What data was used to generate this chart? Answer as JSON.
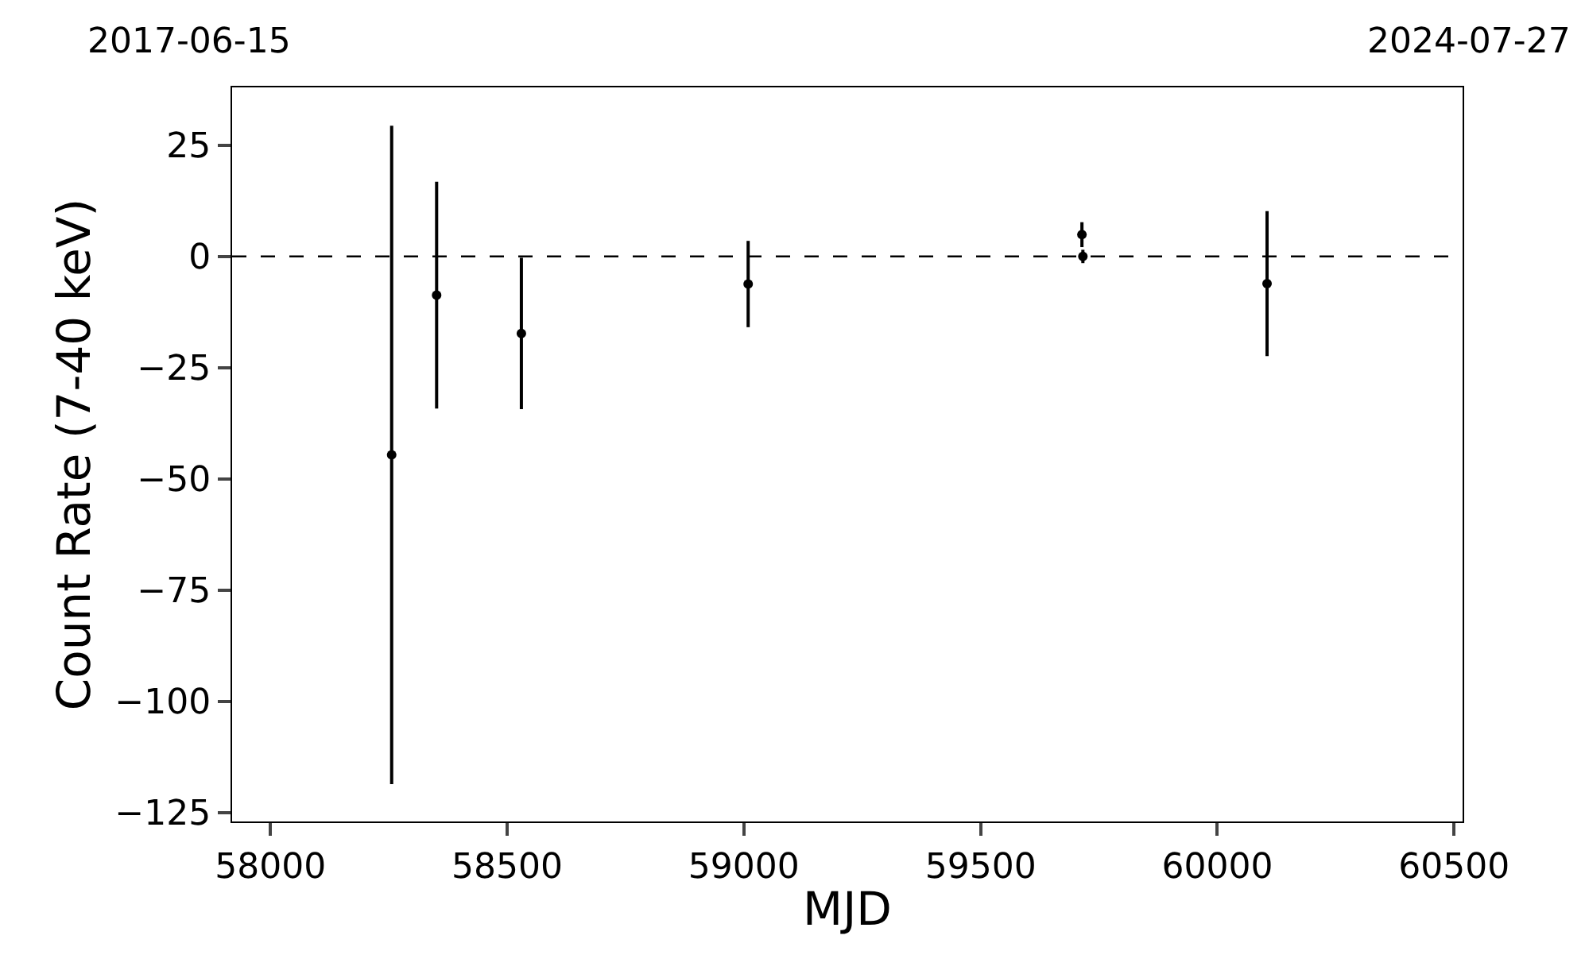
{
  "chart_data": {
    "type": "scatter",
    "xlabel": "MJD",
    "ylabel": "Count Rate (7-40 keV)",
    "annotations": [
      "2017-06-15",
      "2024-07-27"
    ],
    "x": [
      58256,
      58351,
      58530,
      59009,
      59714,
      59716,
      60105
    ],
    "series": [
      {
        "color": "#000000",
        "values": [
          -44.6,
          -8.7,
          -17.3,
          -6.2,
          4.9,
          0.0,
          -6.1
        ],
        "errors": [
          74,
          25.5,
          17,
          9.7,
          2.8,
          1.5,
          16.3
        ]
      }
    ],
    "marker": "circle",
    "xlim": [
      57919,
      60518
    ],
    "xticks": [
      58000,
      58500,
      59000,
      59500,
      60000,
      60500
    ],
    "ylim": [
      -127,
      38
    ],
    "yticks": [
      {
        "value": -125,
        "label": "−125"
      },
      {
        "value": -100,
        "label": "−100"
      },
      {
        "value": -75,
        "label": "−75"
      },
      {
        "value": -50,
        "label": "−50"
      },
      {
        "value": -25,
        "label": "−25"
      },
      0,
      25
    ],
    "ref_lines": [
      {
        "axis": "y",
        "value": 0,
        "color": "#000000",
        "line_style": "dashed"
      }
    ],
    "grid": false
  }
}
